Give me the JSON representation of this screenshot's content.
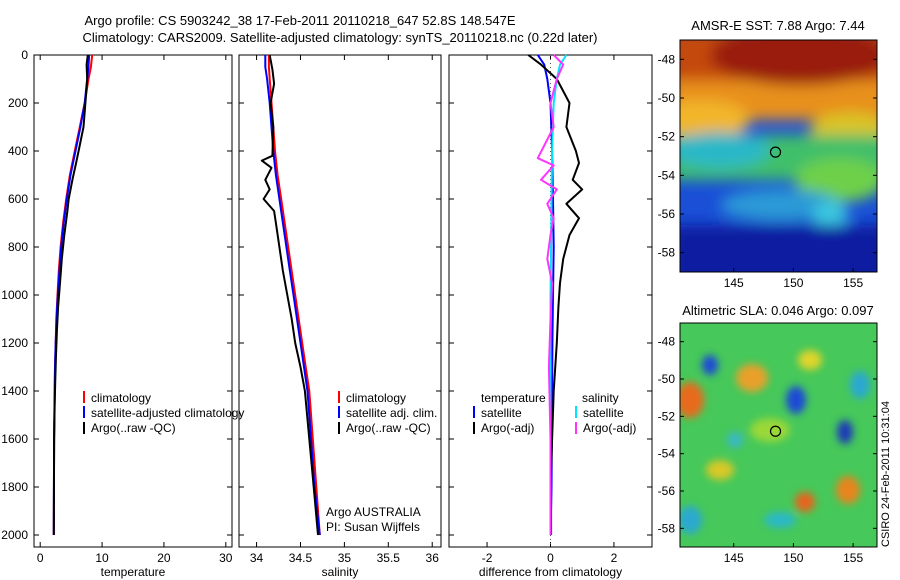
{
  "header": {
    "line1": "Argo profile: CS 5903242_38 17-Feb-2011 20110218_647 52.8S 148.547E",
    "line2": "Climatology: CARS2009. Satellite-adjusted climatology: synTS_20110218.nc (0.22d later)"
  },
  "side_label": "CSIRO 24-Feb-2011 10:31:04",
  "colors": {
    "climatology": "#ff0000",
    "satellite": "#0000ff",
    "argo": "#000000",
    "sal_satellite": "#00e5ff",
    "sal_argo": "#ff33ff"
  },
  "chart_data": [
    {
      "id": "temperature",
      "type": "line",
      "xlabel": "temperature",
      "ylabel": "",
      "xlim": [
        -1,
        31
      ],
      "ylim": [
        2050,
        0
      ],
      "xticks": [
        0,
        10,
        20,
        30
      ],
      "yticks": [
        0,
        200,
        400,
        600,
        800,
        1000,
        1200,
        1400,
        1600,
        1800,
        2000
      ],
      "series": [
        {
          "name": "climatology",
          "color": "#ff0000",
          "x": [
            8.4,
            8.2,
            7.8,
            7.2,
            6.4,
            5.6,
            4.8,
            4.2,
            3.7,
            3.3,
            3.0,
            2.8,
            2.6,
            2.5,
            2.4,
            2.35,
            2.3,
            2.25,
            2.2
          ],
          "y": [
            0,
            50,
            100,
            200,
            300,
            400,
            500,
            600,
            700,
            800,
            900,
            1000,
            1100,
            1200,
            1300,
            1400,
            1500,
            1600,
            2000
          ]
        },
        {
          "name": "satellite-adjusted climatology",
          "color": "#0000ff",
          "x": [
            7.9,
            7.8,
            7.6,
            7.2,
            6.5,
            5.7,
            4.9,
            4.3,
            3.8,
            3.4,
            3.1,
            2.85,
            2.65,
            2.5,
            2.4,
            2.35,
            2.3,
            2.25,
            2.2
          ],
          "y": [
            0,
            50,
            100,
            200,
            300,
            400,
            500,
            600,
            700,
            800,
            900,
            1000,
            1100,
            1200,
            1300,
            1400,
            1500,
            1600,
            2000
          ]
        },
        {
          "name": "Argo(..raw -QC)",
          "color": "#000000",
          "x": [
            7.7,
            7.5,
            7.6,
            7.3,
            7.0,
            6.2,
            5.8,
            5.2,
            4.6,
            4.4,
            3.9,
            3.5,
            3.2,
            2.9,
            2.7,
            2.55,
            2.45,
            2.35,
            2.25,
            2.2
          ],
          "y": [
            0,
            40,
            100,
            200,
            300,
            400,
            450,
            520,
            600,
            650,
            750,
            850,
            950,
            1050,
            1150,
            1250,
            1350,
            1450,
            1600,
            2000
          ]
        }
      ]
    },
    {
      "id": "salinity",
      "type": "line",
      "xlabel": "salinity",
      "ylabel": "",
      "xlim": [
        33.8,
        36.1
      ],
      "ylim": [
        2050,
        0
      ],
      "xticks": [
        34,
        34.5,
        35,
        35.5,
        36
      ],
      "series": [
        {
          "name": "climatology",
          "color": "#ff0000",
          "x": [
            34.14,
            34.14,
            34.15,
            34.17,
            34.19,
            34.21,
            34.24,
            34.28,
            34.32,
            34.36,
            34.4,
            34.44,
            34.48,
            34.52,
            34.56,
            34.6,
            34.64,
            34.68,
            34.72
          ],
          "y": [
            0,
            50,
            100,
            200,
            300,
            400,
            500,
            600,
            700,
            800,
            900,
            1000,
            1100,
            1200,
            1300,
            1400,
            1600,
            1800,
            2000
          ]
        },
        {
          "name": "satellite adj. clim.",
          "color": "#0000ff",
          "x": [
            34.1,
            34.1,
            34.12,
            34.15,
            34.17,
            34.19,
            34.22,
            34.26,
            34.3,
            34.34,
            34.38,
            34.42,
            34.46,
            34.5,
            34.54,
            34.58,
            34.62,
            34.66,
            34.72
          ],
          "y": [
            0,
            50,
            100,
            200,
            300,
            400,
            500,
            600,
            700,
            800,
            900,
            1000,
            1100,
            1200,
            1300,
            1400,
            1600,
            1800,
            2000
          ]
        },
        {
          "name": "Argo(..raw -QC)",
          "color": "#000000",
          "x": [
            34.15,
            34.18,
            34.2,
            34.16,
            34.19,
            34.18,
            34.06,
            34.17,
            34.1,
            34.15,
            34.08,
            34.2,
            34.22,
            34.26,
            34.3,
            34.35,
            34.4,
            34.44,
            34.5,
            34.55,
            34.6,
            34.65,
            34.7
          ],
          "y": [
            0,
            60,
            120,
            200,
            300,
            420,
            440,
            470,
            520,
            560,
            600,
            650,
            700,
            800,
            900,
            1000,
            1100,
            1200,
            1300,
            1400,
            1600,
            1800,
            2000
          ]
        }
      ]
    },
    {
      "id": "difference",
      "type": "line",
      "xlabel": "difference from climatology",
      "ylabel": "",
      "xlim": [
        -3.2,
        3.2
      ],
      "ylim": [
        2050,
        0
      ],
      "xticks": [
        -2,
        0,
        2
      ],
      "legend_headers": [
        "temperature",
        "salinity"
      ],
      "series": [
        {
          "name": "satellite",
          "group": "temperature",
          "color": "#0000ff",
          "x": [
            -0.4,
            -0.2,
            -0.1,
            0.0,
            0.05,
            0.08,
            0.1,
            0.08,
            0.06,
            0.05,
            0.04,
            0.03,
            0.02,
            0.02
          ],
          "y": [
            0,
            40,
            100,
            200,
            400,
            600,
            800,
            1000,
            1200,
            1400,
            1600,
            1800,
            1900,
            2000
          ]
        },
        {
          "name": "Argo(-adj)",
          "group": "temperature",
          "color": "#000000",
          "x": [
            -0.7,
            -0.3,
            0.2,
            0.6,
            0.5,
            0.8,
            0.9,
            0.7,
            1.0,
            0.5,
            0.9,
            0.6,
            0.4,
            0.3,
            0.25,
            0.2,
            0.1,
            0.05,
            0.0,
            0.0
          ],
          "y": [
            0,
            40,
            100,
            200,
            300,
            400,
            450,
            520,
            560,
            620,
            680,
            750,
            850,
            950,
            1050,
            1200,
            1400,
            1600,
            1800,
            2000
          ]
        },
        {
          "name": "satellite",
          "group": "salinity",
          "color": "#00e5ff",
          "x": [
            0.5,
            0.3,
            0.2,
            0.1,
            0.05,
            0.03,
            0.02,
            0.0,
            0.0,
            0.0,
            0.0
          ],
          "y": [
            0,
            40,
            100,
            200,
            400,
            600,
            800,
            1000,
            1400,
            1800,
            2000
          ]
        },
        {
          "name": "Argo(-adj)",
          "group": "salinity",
          "color": "#ff33ff",
          "x": [
            0.1,
            0.4,
            0.2,
            0.0,
            0.1,
            -0.4,
            0.1,
            -0.3,
            0.2,
            -0.1,
            0.1,
            0.0,
            -0.1,
            0.05,
            0.0,
            -0.05,
            0.0,
            0.0
          ],
          "y": [
            0,
            40,
            100,
            200,
            300,
            430,
            460,
            520,
            560,
            620,
            680,
            750,
            850,
            950,
            1100,
            1300,
            1600,
            2000
          ]
        }
      ]
    },
    {
      "id": "sst-map",
      "type": "heatmap",
      "title": "AMSR-E SST: 7.88 Argo: 7.44",
      "xlim": [
        140.5,
        157
      ],
      "ylim": [
        -59,
        -47
      ],
      "xticks": [
        145,
        150,
        155
      ],
      "yticks": [
        -48,
        -50,
        -52,
        -54,
        -56,
        -58
      ],
      "marker": {
        "lon": 148.5,
        "lat": -52.8
      }
    },
    {
      "id": "sla-map",
      "type": "heatmap",
      "title": "Altimetric SLA: 0.046 Argo: 0.097",
      "xlim": [
        140.5,
        157
      ],
      "ylim": [
        -59,
        -47
      ],
      "xticks": [
        145,
        150,
        155
      ],
      "yticks": [
        -48,
        -50,
        -52,
        -54,
        -56,
        -58
      ],
      "marker": {
        "lon": 148.5,
        "lat": -52.8
      }
    }
  ],
  "notes": {
    "line1": "Argo AUSTRALIA",
    "line2": "PI: Susan Wijffels"
  }
}
